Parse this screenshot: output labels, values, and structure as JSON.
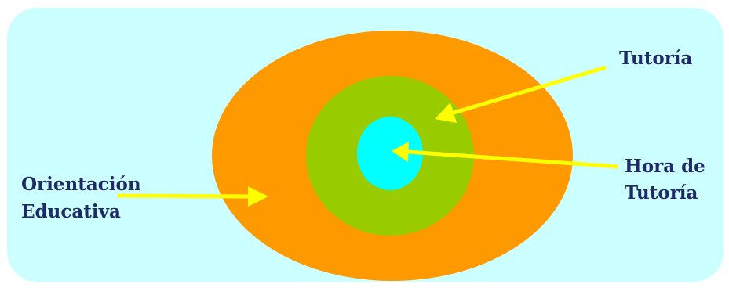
{
  "diagram": {
    "labels": {
      "outer_line1": "Orientación",
      "outer_line2": "Educativa",
      "middle": "Tutoría",
      "inner_line1": "Hora de",
      "inner_line2": "Tutoría"
    },
    "colors": {
      "panel_background": "#ccffff",
      "outer_ellipse": "#ff9900",
      "middle_circle": "#99cc00",
      "inner_ellipse": "#00ffff",
      "arrows": "#ffff00",
      "label_text": "#1f2a66"
    }
  }
}
